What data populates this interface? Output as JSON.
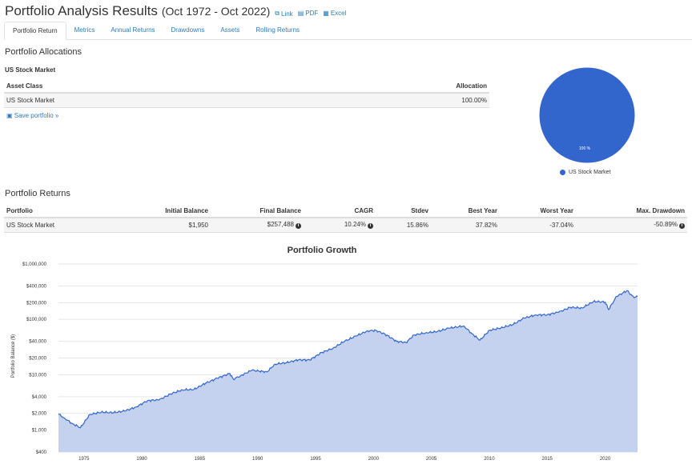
{
  "header": {
    "title": "Portfolio Analysis Results",
    "range": "(Oct 1972 - Oct 2022)",
    "links": [
      "Link",
      "PDF",
      "Excel"
    ]
  },
  "tabs": [
    "Portfolio Return",
    "Metrics",
    "Annual Returns",
    "Drawdowns",
    "Assets",
    "Rolling Returns"
  ],
  "allocations": {
    "heading": "Portfolio Allocations",
    "subheading": "US Stock Market",
    "columns": [
      "Asset Class",
      "Allocation"
    ],
    "rows": [
      [
        "US Stock Market",
        "100.00%"
      ]
    ],
    "save_link": "Save portfolio »"
  },
  "pie": {
    "slice_label": "100 %",
    "legend": "US Stock Market",
    "color": "#3366cc"
  },
  "returns": {
    "heading": "Portfolio Returns",
    "columns": [
      "Portfolio",
      "Initial Balance",
      "Final Balance",
      "CAGR",
      "Stdev",
      "Best Year",
      "Worst Year",
      "Max. Drawdown"
    ],
    "row": [
      "US Stock Market",
      "$1,950",
      "$257,488",
      "10.24%",
      "15.86%",
      "37.82%",
      "-37.04%",
      "-50.89%"
    ]
  },
  "chart_data": {
    "type": "area",
    "title": "Portfolio Growth",
    "ylabel": "Portfolio Balance ($)",
    "yscale": "log",
    "ylim": [
      400,
      1000000
    ],
    "xlim": [
      1972.8,
      2022.8
    ],
    "yticks": [
      {
        "v": 1000000,
        "label": "$1,000,000"
      },
      {
        "v": 400000,
        "label": "$400,000"
      },
      {
        "v": 200000,
        "label": "$200,000"
      },
      {
        "v": 100000,
        "label": "$100,000"
      },
      {
        "v": 40000,
        "label": "$40,000"
      },
      {
        "v": 20000,
        "label": "$20,000"
      },
      {
        "v": 10000,
        "label": "$10,000"
      },
      {
        "v": 4000,
        "label": "$4,000"
      },
      {
        "v": 2000,
        "label": "$2,000"
      },
      {
        "v": 1000,
        "label": "$1,000"
      },
      {
        "v": 400,
        "label": "$400"
      }
    ],
    "xticks": [
      1975,
      1980,
      1985,
      1990,
      1995,
      2000,
      2005,
      2010,
      2015,
      2020
    ],
    "color": "#3366cc",
    "fill": "#c4d2f0",
    "series": [
      {
        "name": "US Stock Market",
        "x": [
          1972.8,
          1973.3,
          1974.0,
          1974.7,
          1975.5,
          1976.5,
          1977.5,
          1978.5,
          1979.5,
          1980.5,
          1981.5,
          1982.5,
          1983.5,
          1984.5,
          1985.5,
          1986.5,
          1987.6,
          1987.9,
          1988.5,
          1989.5,
          1990.8,
          1991.5,
          1992.5,
          1993.5,
          1994.5,
          1995.5,
          1996.5,
          1997.5,
          1998.5,
          1999.5,
          2000.2,
          2001.0,
          2002.0,
          2002.8,
          2003.5,
          2004.5,
          2005.5,
          2006.5,
          2007.8,
          2008.5,
          2009.2,
          2010.0,
          2011.0,
          2012.0,
          2013.0,
          2014.0,
          2015.0,
          2016.0,
          2017.0,
          2018.0,
          2019.0,
          2020.0,
          2020.3,
          2021.0,
          2021.9,
          2022.5,
          2022.8
        ],
        "y": [
          1950,
          1650,
          1300,
          1100,
          1900,
          2100,
          2050,
          2200,
          2600,
          3400,
          3500,
          4500,
          5300,
          5400,
          7000,
          8600,
          10500,
          8300,
          9500,
          12000,
          11200,
          15500,
          16500,
          18500,
          18400,
          25000,
          30000,
          40000,
          50000,
          62000,
          63000,
          54000,
          40000,
          38000,
          52000,
          57000,
          60000,
          69000,
          76000,
          55000,
          42000,
          63000,
          70000,
          80000,
          105000,
          120000,
          121000,
          135000,
          165000,
          160000,
          210000,
          205000,
          150000,
          260000,
          330000,
          245000,
          257488
        ]
      }
    ]
  }
}
